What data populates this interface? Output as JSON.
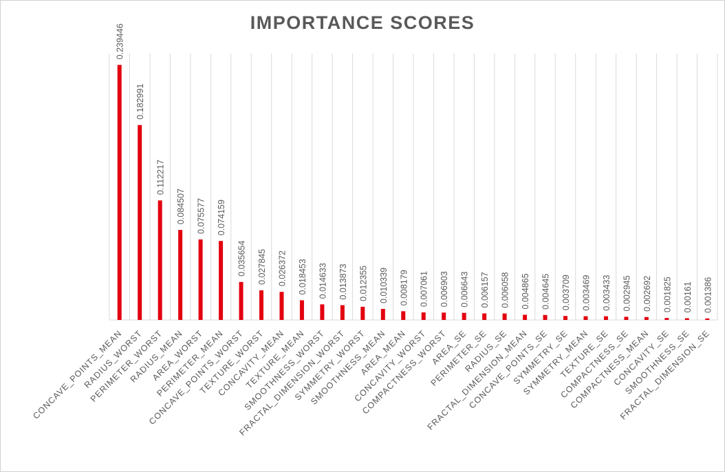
{
  "chart_data": {
    "type": "bar",
    "title": "IMPORTANCE SCORES",
    "xlabel": "",
    "ylabel": "",
    "ylim": [
      0,
      0.25
    ],
    "grid": "vertical",
    "legend": "none",
    "bar_color": "#e3000f",
    "categories": [
      "CONCAVE_POINTS_MEAN",
      "RADIUS_WORST",
      "PERIMETER_WORST",
      "RADIUS_MEAN",
      "AREA_WORST",
      "PERIMETER_MEAN",
      "CONCAVE_POINTS_WORST",
      "TEXTURE_WORST",
      "CONCAVITY_MEAN",
      "TEXTURE_MEAN",
      "SMOOTHNESS_WORST",
      "FRACTAL_DIMENSION_WORST",
      "SYMMETRY_WORST",
      "SMOOTHNESS_MEAN",
      "AREA_MEAN",
      "CONCAVITY_WORST",
      "COMPACTNESS_WORST",
      "AREA_SE",
      "PERIMETER_SE",
      "RADIUS_SE",
      "FRACTAL_DIMENSION_MEAN",
      "CONCAVE_POINTS_SE",
      "SYMMETRY_SE",
      "SYMMETRY_MEAN",
      "TEXTURE_SE",
      "COMPACTNESS_SE",
      "COMPACTNESS_MEAN",
      "CONCAVITY_SE",
      "SMOOTHNESS_SE",
      "FRACTAL_DIMENSION_SE"
    ],
    "values": [
      0.239446,
      0.182991,
      0.112217,
      0.084507,
      0.075577,
      0.074159,
      0.035654,
      0.027845,
      0.026372,
      0.018453,
      0.014633,
      0.013873,
      0.012355,
      0.010339,
      0.008179,
      0.007061,
      0.006903,
      0.006643,
      0.006157,
      0.006058,
      0.004865,
      0.004645,
      0.003709,
      0.003469,
      0.003433,
      0.002945,
      0.002692,
      0.001825,
      0.00161,
      0.001386
    ],
    "data_labels": [
      "0.239446",
      "0.182991",
      "0.112217",
      "0.084507",
      "0.075577",
      "0.074159",
      "0.035654",
      "0.027845",
      "0.026372",
      "0.018453",
      "0.014633",
      "0.013873",
      "0.012355",
      "0.010339",
      "0.008179",
      "0.007061",
      "0.006903",
      "0.006643",
      "0.006157",
      "0.006058",
      "0.004865",
      "0.004645",
      "0.003709",
      "0.003469",
      "0.003433",
      "0.002945",
      "0.002692",
      "0.001825",
      "0.00161",
      "0.001386"
    ]
  }
}
